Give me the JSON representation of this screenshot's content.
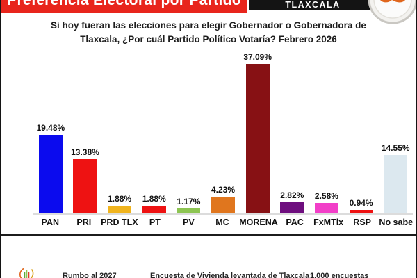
{
  "header": {
    "title": "Preferencia Electoral por Partido",
    "region_badge": "TLAXCALA"
  },
  "subtitle": {
    "line1": "Si hoy fueran las elecciones para elegir Gobernador o Gobernadora de",
    "line2": "Tlaxcala, ¿Por cuál Partido Político Votaría? Febrero 2026"
  },
  "chart_data": {
    "type": "bar",
    "title": "Preferencia Electoral por Partido",
    "categories": [
      "PAN",
      "PRI",
      "PRD TLX",
      "PT",
      "PV",
      "MC",
      "MORENA",
      "PAC",
      "FxMTlx",
      "RSP",
      "No sabe"
    ],
    "values": [
      19.48,
      13.38,
      1.88,
      1.88,
      1.17,
      4.23,
      37.09,
      2.82,
      2.58,
      0.94,
      14.55
    ],
    "value_labels": [
      "19.48%",
      "13.38%",
      "1.88%",
      "1.88%",
      "1.17%",
      "4.23%",
      "37.09%",
      "2.82%",
      "2.58%",
      "0.94%",
      "14.55%"
    ],
    "colors": [
      "#0b0bee",
      "#ee1212",
      "#f0b41e",
      "#ee1212",
      "#8dc552",
      "#e0761e",
      "#871114",
      "#6e0e7e",
      "#f23fc8",
      "#ee1212",
      "#dce8ef"
    ],
    "xlabel": "",
    "ylabel": "",
    "ylim": [
      0,
      40
    ],
    "grid": false,
    "legend": false,
    "baseline_color": "#dcdcdc"
  },
  "footer": {
    "left_text": "Rumbo al 2027",
    "center_text": "Encuesta de Vivienda levantada de Tlaxcala",
    "right_text": "1,000 encuestas"
  },
  "colors": {
    "banner_red": "#e8251c",
    "banner_black": "#141414",
    "logo_orange": "#e0661c",
    "text": "#1b1b1b"
  }
}
